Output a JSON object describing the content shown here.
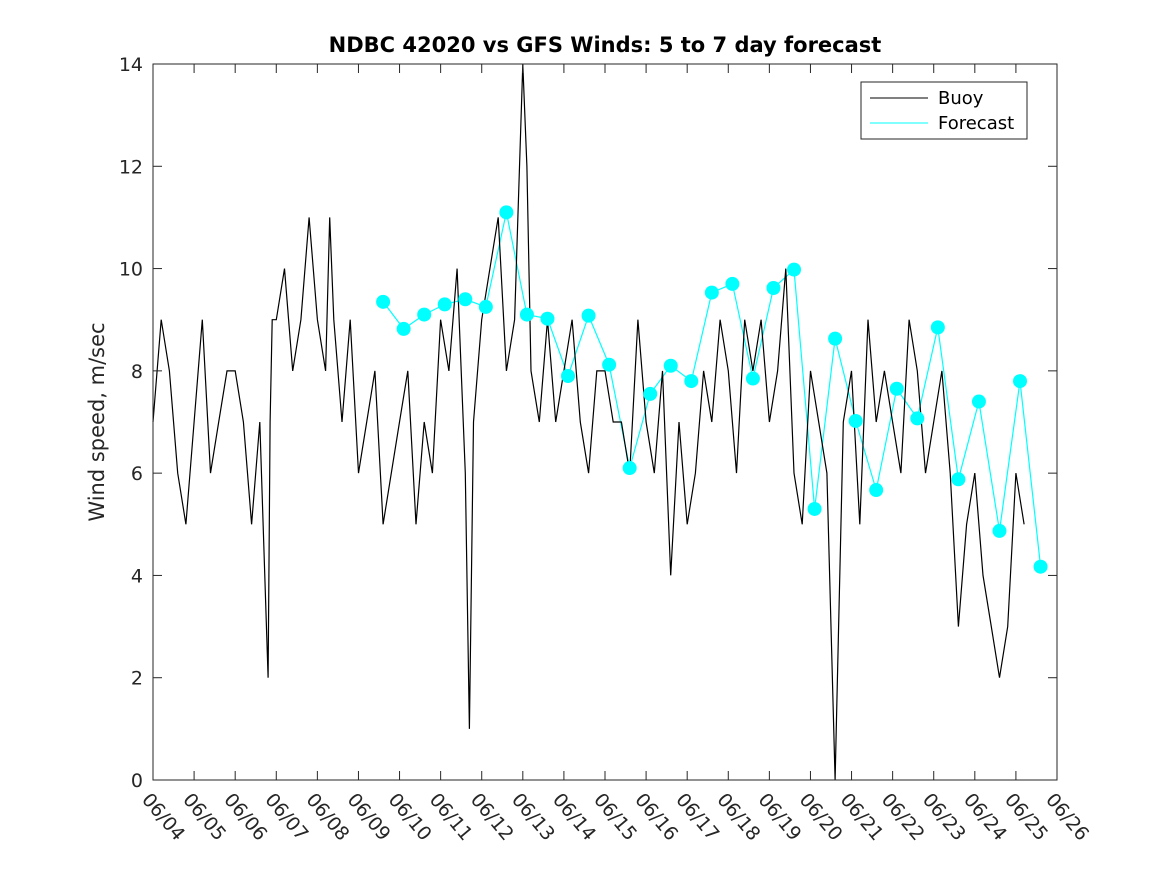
{
  "chart_data": {
    "type": "line",
    "title": "NDBC 42020 vs GFS Winds: 5 to 7 day forecast",
    "xlabel": "",
    "ylabel": "Wind speed, m/sec",
    "ylim": [
      0,
      14
    ],
    "yticks": [
      "0",
      "2",
      "4",
      "6",
      "8",
      "10",
      "12",
      "14"
    ],
    "xlim_day": [
      4,
      26
    ],
    "xticks": [
      "06/04",
      "06/05",
      "06/06",
      "06/07",
      "06/08",
      "06/09",
      "06/10",
      "06/11",
      "06/12",
      "06/13",
      "06/14",
      "06/15",
      "06/16",
      "06/17",
      "06/18",
      "06/19",
      "06/20",
      "06/21",
      "06/22",
      "06/23",
      "06/24",
      "06/25",
      "06/26"
    ],
    "grid": false,
    "legend_position": "top-right",
    "legend": [
      {
        "name": "Buoy",
        "color": "#000000"
      },
      {
        "name": "Forecast",
        "color": "#00FFFF"
      }
    ],
    "series": [
      {
        "name": "Buoy",
        "color": "#000000",
        "x": [
          4.0,
          4.2,
          4.4,
          4.6,
          4.8,
          5.0,
          5.2,
          5.4,
          5.6,
          5.8,
          6.0,
          6.2,
          6.4,
          6.6,
          6.8,
          6.85,
          6.9,
          7.0,
          7.2,
          7.4,
          7.6,
          7.8,
          8.0,
          8.2,
          8.3,
          8.4,
          8.6,
          8.8,
          9.0,
          9.2,
          9.4,
          9.6,
          9.8,
          10.0,
          10.2,
          10.4,
          10.6,
          10.8,
          11.0,
          11.2,
          11.4,
          11.6,
          11.7,
          11.8,
          12.0,
          12.2,
          12.4,
          12.6,
          12.8,
          13.0,
          13.1,
          13.2,
          13.4,
          13.6,
          13.8,
          14.0,
          14.2,
          14.4,
          14.6,
          14.8,
          15.0,
          15.2,
          15.4,
          15.6,
          15.8,
          16.0,
          16.2,
          16.4,
          16.6,
          16.8,
          17.0,
          17.2,
          17.4,
          17.6,
          17.8,
          18.0,
          18.2,
          18.4,
          18.6,
          18.8,
          19.0,
          19.2,
          19.4,
          19.6,
          19.8,
          20.0,
          20.2,
          20.4,
          20.6,
          20.8,
          21.0,
          21.2,
          21.4,
          21.6,
          21.8,
          22.0,
          22.2,
          22.4,
          22.6,
          22.8,
          23.0,
          23.2,
          23.4,
          23.6,
          23.8,
          24.0,
          24.2,
          24.4,
          24.6,
          24.8,
          25.0,
          25.2
        ],
        "y": [
          7,
          9,
          8,
          6,
          5,
          7,
          9,
          6,
          7,
          8,
          8,
          7,
          5,
          7,
          2,
          7,
          9,
          9,
          10,
          8,
          9,
          11,
          9,
          8,
          11,
          9,
          7,
          9,
          6,
          7,
          8,
          5,
          6,
          7,
          8,
          5,
          7,
          6,
          9,
          8,
          10,
          6,
          1,
          7,
          9,
          10,
          11,
          8,
          9,
          14,
          12,
          8,
          7,
          9,
          7,
          8,
          9,
          7,
          6,
          8,
          8,
          7,
          7,
          6,
          9,
          7,
          6,
          8,
          4,
          7,
          5,
          6,
          8,
          7,
          9,
          8,
          6,
          9,
          8,
          9,
          7,
          8,
          10,
          6,
          5,
          8,
          7,
          6,
          0,
          7,
          8,
          5,
          9,
          7,
          8,
          7,
          6,
          9,
          8,
          6,
          7,
          8,
          6,
          3,
          5,
          6,
          4,
          3,
          2,
          3,
          6,
          5
        ]
      },
      {
        "name": "Forecast",
        "color": "#00FFFF",
        "x": [
          9.6,
          10.1,
          10.6,
          11.1,
          11.6,
          12.1,
          12.6,
          13.1,
          13.6,
          14.1,
          14.6,
          15.1,
          15.6,
          16.1,
          16.6,
          17.1,
          17.6,
          18.1,
          18.6,
          19.1,
          19.6,
          20.1,
          20.6,
          21.1,
          21.6,
          22.1,
          22.6,
          23.1,
          23.6,
          24.1,
          24.6,
          25.1,
          25.6
        ],
        "y": [
          9.35,
          8.82,
          9.1,
          9.3,
          9.4,
          9.25,
          11.1,
          9.1,
          9.02,
          7.9,
          9.08,
          8.12,
          6.1,
          7.55,
          8.1,
          7.8,
          9.53,
          9.7,
          7.85,
          9.62,
          9.98,
          5.3,
          8.63,
          7.02,
          5.67,
          7.65,
          7.07,
          8.85,
          5.88,
          7.4,
          4.87,
          7.8,
          4.17
        ]
      }
    ]
  }
}
